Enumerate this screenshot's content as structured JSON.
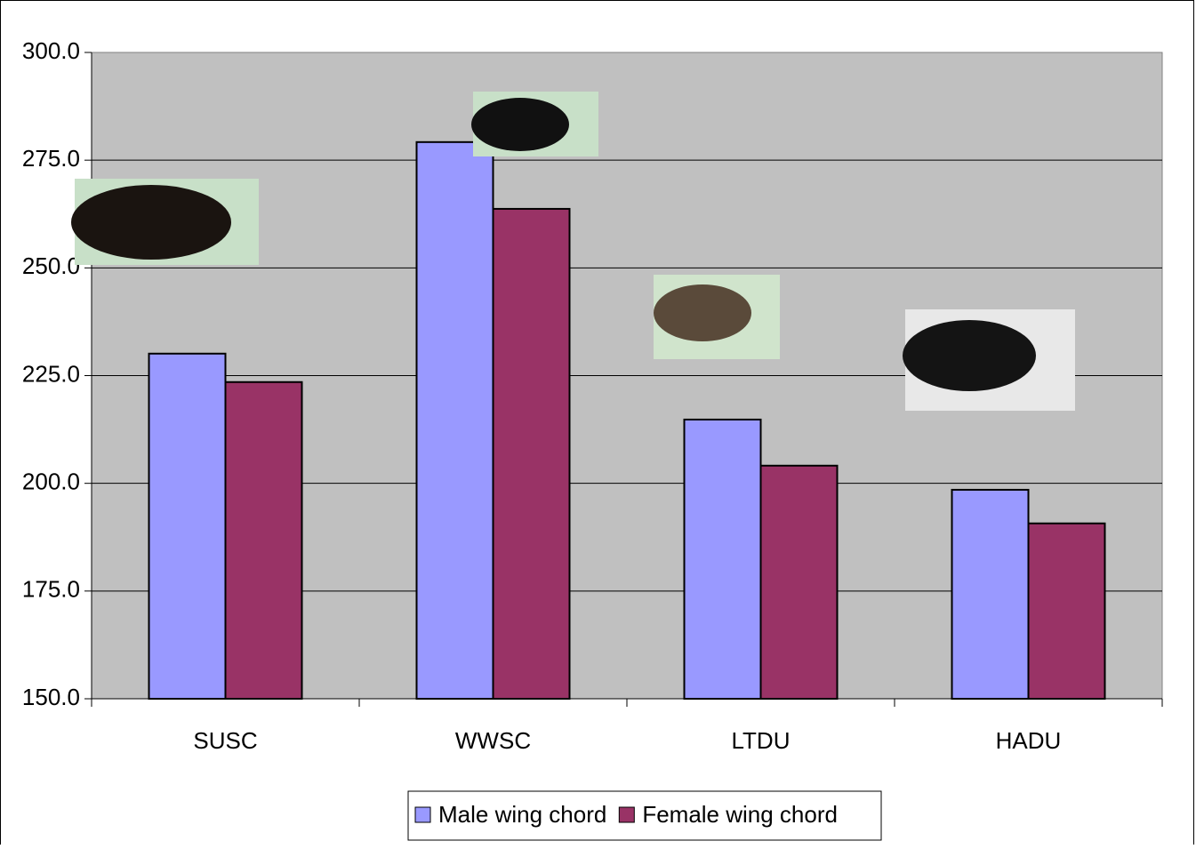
{
  "chart_data": {
    "type": "bar",
    "categories": [
      "SUSC",
      "WWSC",
      "LTDU",
      "HADU"
    ],
    "series": [
      {
        "name": "Male wing chord",
        "color": "#9999ff",
        "values": [
          230.1,
          279.2,
          214.8,
          198.5
        ]
      },
      {
        "name": "Female wing chord",
        "color": "#993366",
        "values": [
          223.5,
          263.7,
          204.1,
          190.7
        ]
      }
    ],
    "ylim": [
      150,
      300
    ],
    "yticks": [
      {
        "value": 150,
        "label": "150.0"
      },
      {
        "value": 175,
        "label": "175.0"
      },
      {
        "value": 200,
        "label": "200.0"
      },
      {
        "value": 225,
        "label": "225.0"
      },
      {
        "value": 250,
        "label": "250.0"
      },
      {
        "value": 275,
        "label": "275.0"
      },
      {
        "value": 300,
        "label": "300.0"
      }
    ],
    "grid": true,
    "legend": "bottom"
  }
}
